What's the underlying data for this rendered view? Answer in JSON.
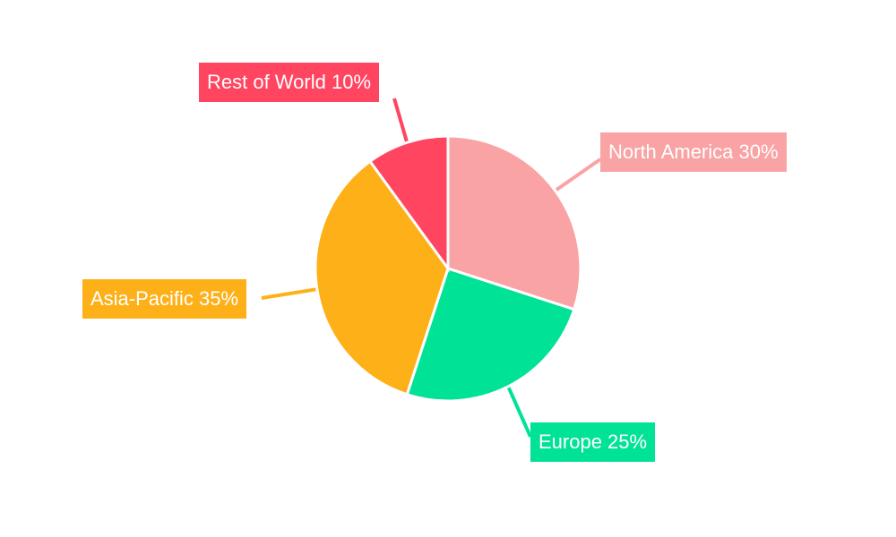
{
  "chart_data": {
    "type": "pie",
    "start_angle": "top",
    "direction": "clockwise",
    "unit": "%",
    "slices": [
      {
        "label": "North America",
        "value": 30,
        "color": "#F9A3A4",
        "text": "North America 30%"
      },
      {
        "label": "Europe",
        "value": 25,
        "color": "#00E396",
        "text": "Europe 25%"
      },
      {
        "label": "Asia-Pacific",
        "value": 35,
        "color": "#FEB019",
        "text": "Asia-Pacific 35%"
      },
      {
        "label": "Rest of World",
        "value": 10,
        "color": "#FF4560",
        "text": "Rest of World 10%"
      }
    ],
    "legend": "none",
    "labels": "outside-with-leader-lines"
  }
}
